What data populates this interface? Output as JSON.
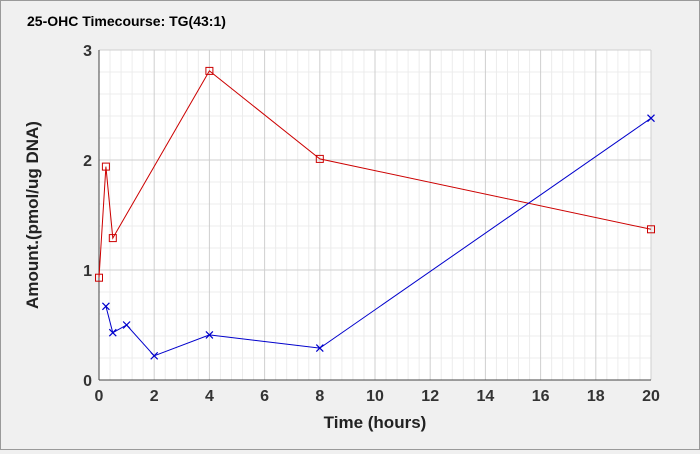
{
  "chart_data": {
    "type": "line",
    "title": "25-OHC Timecourse: TG(43:1)",
    "xlabel": "Time (hours)",
    "ylabel": "Amount.(pmol/ug DNA)",
    "xlim": [
      0,
      20
    ],
    "ylim": [
      0,
      3
    ],
    "xticks": [
      "0",
      "2",
      "4",
      "6",
      "8",
      "10",
      "12",
      "14",
      "16",
      "18",
      "20"
    ],
    "yticks": [
      "0",
      "1",
      "2",
      "3"
    ],
    "grid": true,
    "legend": "none",
    "series": [
      {
        "color": "#cc0000",
        "marker": "square",
        "x": [
          0,
          0.25,
          0.5,
          4,
          8,
          20
        ],
        "y": [
          0.93,
          1.94,
          1.29,
          2.81,
          2.01,
          1.37
        ]
      },
      {
        "color": "#0000cc",
        "marker": "x",
        "x": [
          0.25,
          0.5,
          1,
          2,
          4,
          8,
          20
        ],
        "y": [
          0.67,
          0.43,
          0.5,
          0.22,
          0.41,
          0.29,
          2.38
        ]
      }
    ]
  }
}
